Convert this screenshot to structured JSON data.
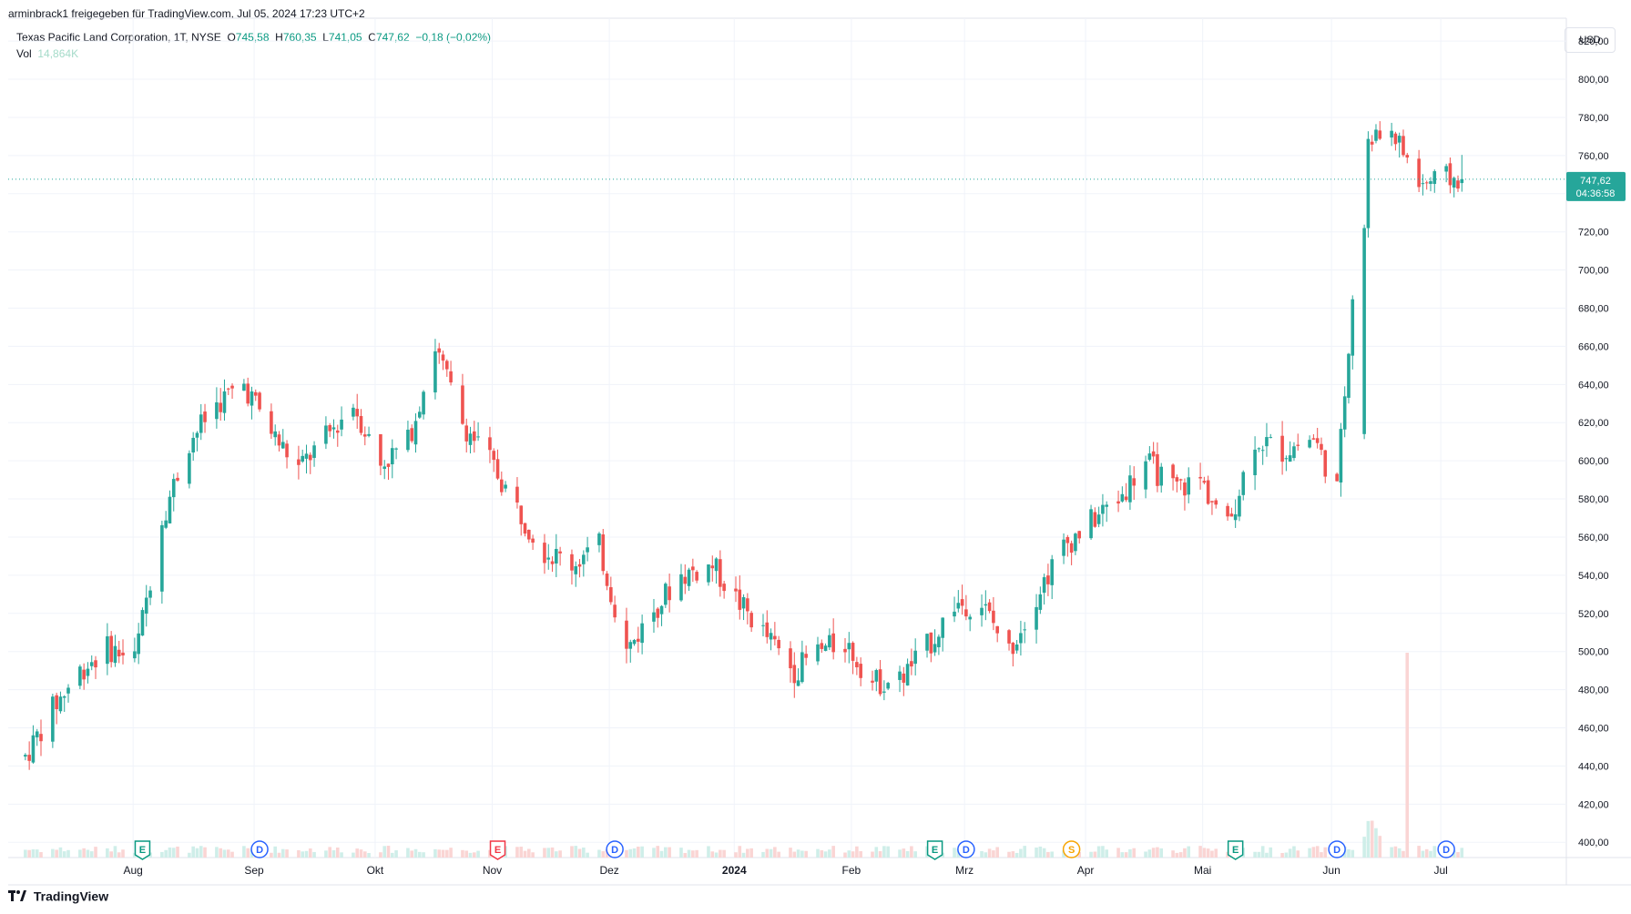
{
  "header": {
    "share_text": "arminbrack1 freigegeben für TradingView.com, Jul 05, 2024 17:23 UTC+2"
  },
  "legend": {
    "symbol": "Texas Pacific Land Corporation, 1T, NYSE",
    "o_label": "O",
    "o_value": "745,58",
    "h_label": "H",
    "h_value": "760,35",
    "l_label": "L",
    "l_value": "741,05",
    "c_label": "C",
    "c_value": "747,62",
    "change": "−0,18 (−0,02%)",
    "vol_label": "Vol",
    "vol_value": "14,864K"
  },
  "currency_button": "USD",
  "last_price": {
    "value": "747,62",
    "countdown": "04:36:58"
  },
  "footer": {
    "brand": "TradingView"
  },
  "colors": {
    "up": "#26a69a",
    "down": "#ef5350",
    "price_tag": "#26a69a",
    "grid": "#f0f3fa"
  },
  "event_markers": [
    {
      "glyph": "E",
      "kind": "earnings",
      "color": "#089981",
      "date": "2023-08-02"
    },
    {
      "glyph": "D",
      "kind": "dividend",
      "color": "#2962ff",
      "date": "2023-09-01"
    },
    {
      "glyph": "E",
      "kind": "earnings",
      "color": "#f23645",
      "date": "2023-11-01"
    },
    {
      "glyph": "D",
      "kind": "dividend",
      "color": "#2962ff",
      "date": "2023-12-01"
    },
    {
      "glyph": "E",
      "kind": "earnings",
      "color": "#089981",
      "date": "2024-02-21"
    },
    {
      "glyph": "D",
      "kind": "dividend",
      "color": "#2962ff",
      "date": "2024-02-29"
    },
    {
      "glyph": "S",
      "kind": "split",
      "color": "#f7a400",
      "date": "2024-03-27"
    },
    {
      "glyph": "E",
      "kind": "earnings",
      "color": "#089981",
      "date": "2024-05-08"
    },
    {
      "glyph": "D",
      "kind": "dividend",
      "color": "#2962ff",
      "date": "2024-06-03"
    },
    {
      "glyph": "D",
      "kind": "dividend",
      "color": "#2962ff",
      "date": "2024-07-01"
    }
  ],
  "chart_data": {
    "type": "candlestick",
    "title": "Texas Pacific Land Corporation, 1T, NYSE",
    "xlabel": "",
    "ylabel": "",
    "ylim": [
      392,
      832
    ],
    "yticks": [
      "400,00",
      "420,00",
      "440,00",
      "460,00",
      "480,00",
      "500,00",
      "520,00",
      "540,00",
      "560,00",
      "580,00",
      "600,00",
      "620,00",
      "640,00",
      "660,00",
      "680,00",
      "700,00",
      "720,00",
      "740,00",
      "760,00",
      "780,00",
      "800,00",
      "820,00"
    ],
    "x_tick_labels": [
      {
        "label": "Aug",
        "date": "2023-08-01"
      },
      {
        "label": "Sep",
        "date": "2023-09-01"
      },
      {
        "label": "Okt",
        "date": "2023-10-02"
      },
      {
        "label": "Nov",
        "date": "2023-11-01"
      },
      {
        "label": "Dez",
        "date": "2023-12-01"
      },
      {
        "label": "2024",
        "date": "2024-01-02"
      },
      {
        "label": "Feb",
        "date": "2024-02-01"
      },
      {
        "label": "Mrz",
        "date": "2024-03-01"
      },
      {
        "label": "Apr",
        "date": "2024-04-01"
      },
      {
        "label": "Mai",
        "date": "2024-05-01"
      },
      {
        "label": "Jun",
        "date": "2024-06-03"
      },
      {
        "label": "Jul",
        "date": "2024-07-01"
      }
    ],
    "grid": true,
    "last_price_line": 747.62,
    "closes": [
      {
        "date": "2023-07-03",
        "close": 445
      },
      {
        "date": "2023-07-10",
        "close": 470
      },
      {
        "date": "2023-07-17",
        "close": 490
      },
      {
        "date": "2023-07-24",
        "close": 502
      },
      {
        "date": "2023-07-31",
        "close": 496
      },
      {
        "date": "2023-08-07",
        "close": 570
      },
      {
        "date": "2023-08-14",
        "close": 610
      },
      {
        "date": "2023-08-21",
        "close": 630
      },
      {
        "date": "2023-08-28",
        "close": 640
      },
      {
        "date": "2023-09-05",
        "close": 612
      },
      {
        "date": "2023-09-11",
        "close": 596
      },
      {
        "date": "2023-09-18",
        "close": 612
      },
      {
        "date": "2023-09-25",
        "close": 630
      },
      {
        "date": "2023-10-02",
        "close": 598
      },
      {
        "date": "2023-10-09",
        "close": 610
      },
      {
        "date": "2023-10-16",
        "close": 660
      },
      {
        "date": "2023-10-23",
        "close": 620
      },
      {
        "date": "2023-10-30",
        "close": 600
      },
      {
        "date": "2023-11-06",
        "close": 575
      },
      {
        "date": "2023-11-13",
        "close": 553
      },
      {
        "date": "2023-11-20",
        "close": 546
      },
      {
        "date": "2023-11-27",
        "close": 555
      },
      {
        "date": "2023-12-04",
        "close": 500
      },
      {
        "date": "2023-12-11",
        "close": 522
      },
      {
        "date": "2023-12-18",
        "close": 540
      },
      {
        "date": "2023-12-26",
        "close": 545
      },
      {
        "date": "2024-01-02",
        "close": 525
      },
      {
        "date": "2024-01-08",
        "close": 510
      },
      {
        "date": "2024-01-16",
        "close": 490
      },
      {
        "date": "2024-01-22",
        "close": 500
      },
      {
        "date": "2024-01-29",
        "close": 505
      },
      {
        "date": "2024-02-05",
        "close": 484
      },
      {
        "date": "2024-02-12",
        "close": 485
      },
      {
        "date": "2024-02-20",
        "close": 505
      },
      {
        "date": "2024-02-26",
        "close": 525
      },
      {
        "date": "2024-03-04",
        "close": 525
      },
      {
        "date": "2024-03-11",
        "close": 500
      },
      {
        "date": "2024-03-18",
        "close": 530
      },
      {
        "date": "2024-03-25",
        "close": 555
      },
      {
        "date": "2024-04-01",
        "close": 568
      },
      {
        "date": "2024-04-08",
        "close": 580
      },
      {
        "date": "2024-04-15",
        "close": 600
      },
      {
        "date": "2024-04-22",
        "close": 585
      },
      {
        "date": "2024-04-29",
        "close": 590
      },
      {
        "date": "2024-05-06",
        "close": 565
      },
      {
        "date": "2024-05-13",
        "close": 612
      },
      {
        "date": "2024-05-20",
        "close": 605
      },
      {
        "date": "2024-05-28",
        "close": 612
      },
      {
        "date": "2024-06-03",
        "close": 585
      },
      {
        "date": "2024-06-10",
        "close": 765
      },
      {
        "date": "2024-06-17",
        "close": 775
      },
      {
        "date": "2024-06-24",
        "close": 745
      },
      {
        "date": "2024-07-01",
        "close": 747.62
      }
    ],
    "volume_spike": {
      "date": "2024-06-21",
      "relative": "largest"
    }
  }
}
